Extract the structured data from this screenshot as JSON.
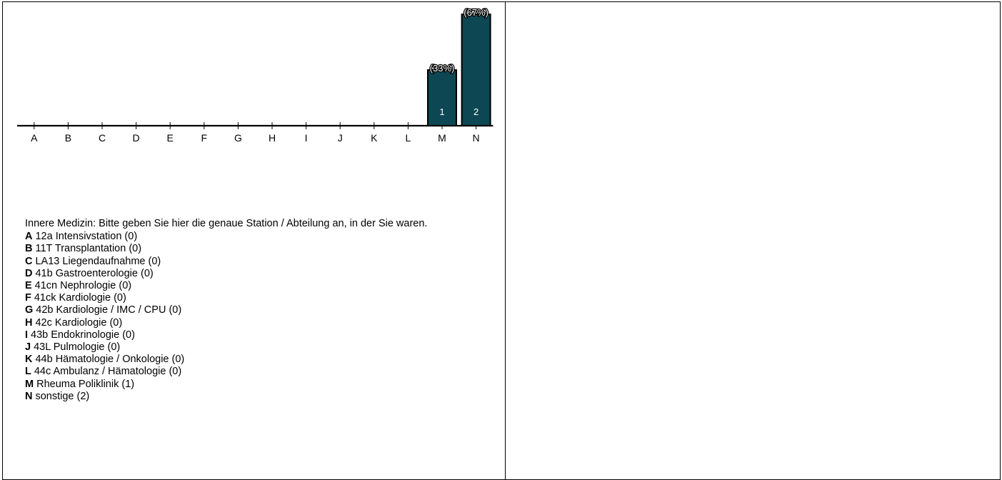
{
  "chart_data": {
    "type": "bar",
    "categories": [
      "A",
      "B",
      "C",
      "D",
      "E",
      "F",
      "G",
      "H",
      "I",
      "J",
      "K",
      "L",
      "M",
      "N"
    ],
    "values": [
      0,
      0,
      0,
      0,
      0,
      0,
      0,
      0,
      0,
      0,
      0,
      0,
      1,
      2
    ],
    "percent_labels": [
      "",
      "",
      "",
      "",
      "",
      "",
      "",
      "",
      "",
      "",
      "",
      "",
      "(33%)",
      "(67%)"
    ],
    "ylim": [
      0,
      2
    ],
    "bar_color": "#0d4753",
    "grid": false,
    "legend": [
      {
        "key": "A",
        "label": "12a Intensivstation (0)"
      },
      {
        "key": "B",
        "label": "11T Transplantation (0)"
      },
      {
        "key": "C",
        "label": "LA13 Liegendaufnahme (0)"
      },
      {
        "key": "D",
        "label": "41b Gastroenterologie (0)"
      },
      {
        "key": "E",
        "label": "41cn Nephrologie (0)"
      },
      {
        "key": "F",
        "label": "41ck Kardiologie (0)"
      },
      {
        "key": "G",
        "label": "42b Kardiologie / IMC / CPU (0)"
      },
      {
        "key": "H",
        "label": "42c Kardiologie (0)"
      },
      {
        "key": "I",
        "label": "43b Endokrinologie (0)"
      },
      {
        "key": "J",
        "label": "43L Pulmologie (0)"
      },
      {
        "key": "K",
        "label": "44b Hämatologie / Onkologie (0)"
      },
      {
        "key": "L",
        "label": "44c Ambulanz / Hämatologie (0)"
      },
      {
        "key": "M",
        "label": "Rheuma Poliklinik (1)"
      },
      {
        "key": "N",
        "label": "sonstige (2)"
      }
    ]
  },
  "question": "Innere Medizin: Bitte geben Sie hier die genaue Station / Abteilung an, in der Sie waren."
}
